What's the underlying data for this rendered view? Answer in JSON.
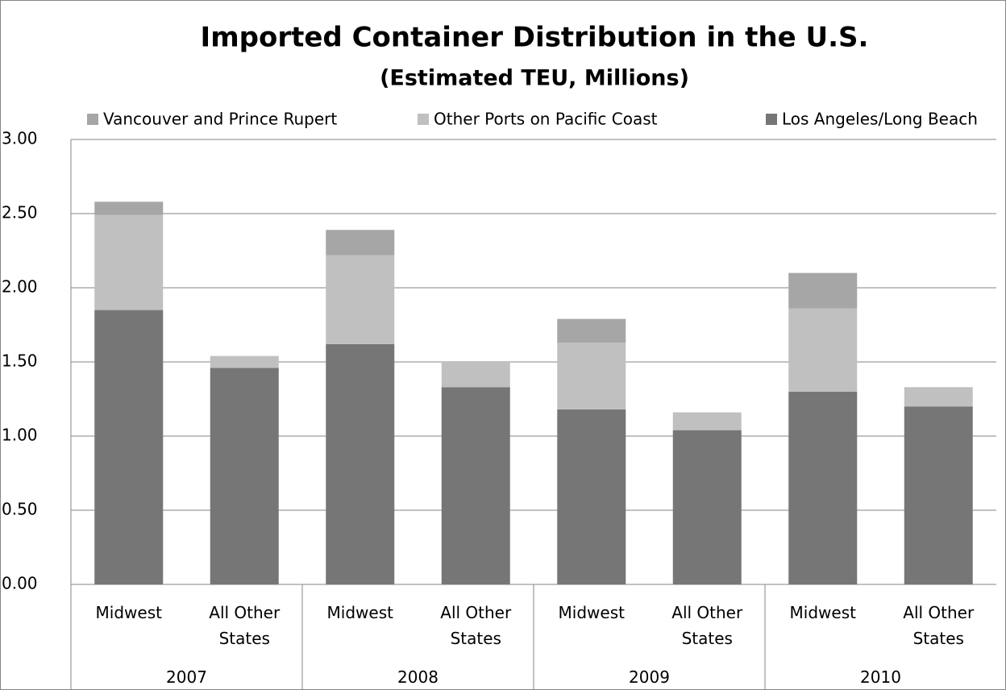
{
  "chart_data": {
    "type": "stacked_bar",
    "title": "Imported Container Distribution in the U.S.",
    "subtitle": "(Estimated TEU, Millions)",
    "categories": [
      "Midwest",
      "All Other States",
      "Midwest",
      "All Other States",
      "Midwest",
      "All Other States",
      "Midwest",
      "All Other States"
    ],
    "groups": [
      "2007",
      "2008",
      "2009",
      "2010"
    ],
    "series": [
      {
        "name": "Los Angeles/Long Beach",
        "color": "#767676",
        "values": [
          1.85,
          1.46,
          1.62,
          1.33,
          1.18,
          1.04,
          1.3,
          1.2
        ]
      },
      {
        "name": "Other Ports on Pacific Coast",
        "color": "#c0c0c0",
        "values": [
          0.64,
          0.08,
          0.6,
          0.17,
          0.45,
          0.12,
          0.56,
          0.13
        ]
      },
      {
        "name": "Vancouver and Prince Rupert",
        "color": "#a6a6a6",
        "values": [
          0.09,
          0,
          0.17,
          0,
          0.16,
          0,
          0.24,
          0
        ]
      }
    ],
    "ylim": [
      0,
      3
    ],
    "yticks": [
      {
        "value": 0,
        "label": "0.00"
      },
      {
        "value": 0.5,
        "label": "0.50"
      },
      {
        "value": 1,
        "label": "1.00"
      },
      {
        "value": 1.5,
        "label": "1.50"
      },
      {
        "value": 2,
        "label": "2.00"
      },
      {
        "value": 2.5,
        "label": "2.50"
      },
      {
        "value": 3,
        "label": "3.00"
      }
    ],
    "grid": true,
    "legend": "top"
  }
}
